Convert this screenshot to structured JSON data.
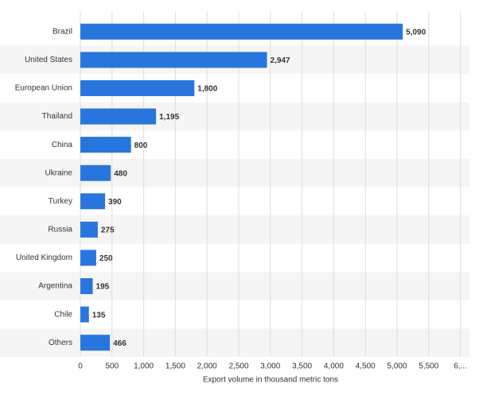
{
  "chart_data": {
    "type": "bar",
    "orientation": "horizontal",
    "x_axis_label": "Export volume in thousand metric tons",
    "categories": [
      "Brazil",
      "United States",
      "European Union",
      "Thailand",
      "China",
      "Ukraine",
      "Turkey",
      "Russia",
      "United Kingdom",
      "Argentina",
      "Chile",
      "Others"
    ],
    "values": [
      5090,
      2947,
      1800,
      1195,
      800,
      480,
      390,
      275,
      250,
      195,
      135,
      466
    ],
    "value_labels": [
      "5,090",
      "2,947",
      "1,800",
      "1,195",
      "800",
      "480",
      "390",
      "275",
      "250",
      "195",
      "135",
      "466"
    ],
    "color": "#2876dd",
    "xlim": [
      0,
      6000
    ],
    "xticks": [
      0,
      500,
      {
        "value": 1000,
        "label": "1,000"
      },
      {
        "value": 1500,
        "label": "1,500"
      },
      {
        "value": 2000,
        "label": "2,000"
      },
      {
        "value": 2500,
        "label": "2,500"
      },
      {
        "value": 3000,
        "label": "3,000"
      },
      {
        "value": 3500,
        "label": "3,500"
      },
      {
        "value": 4000,
        "label": "4,000"
      },
      {
        "value": 4500,
        "label": "4,500"
      },
      {
        "value": 5000,
        "label": "5,000"
      },
      {
        "value": 5500,
        "label": "5,500"
      },
      {
        "value": 6000,
        "label": "6,..."
      }
    ],
    "grid": true
  }
}
